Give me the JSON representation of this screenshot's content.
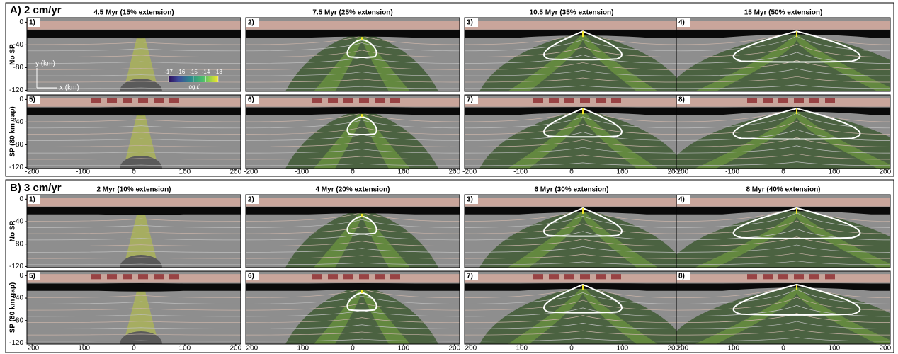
{
  "sections": [
    {
      "title": "A) 2 cm/yr",
      "columns": [
        "4.5 Myr (15% extension)",
        "7.5 Myr (25% extension)",
        "10.5 Myr (35% extension)",
        "15 Myr (50% extension)"
      ],
      "rows": [
        "No SP",
        "SP (80 km gap)"
      ],
      "panels": [
        "1)",
        "2)",
        "3)",
        "4)",
        "5)",
        "6)",
        "7)",
        "8)"
      ]
    },
    {
      "title": "B) 3 cm/yr",
      "columns": [
        "2 Myr (10% extension)",
        "4 Myr (20% extension)",
        "6 Myr (30% extension)",
        "8 Myr (40% extension)"
      ],
      "rows": [
        "No SP",
        "SP (80 km gap)"
      ],
      "panels": [
        "1)",
        "2)",
        "3)",
        "4)",
        "5)",
        "6)",
        "7)",
        "8)"
      ]
    }
  ],
  "xticks": [
    -200,
    -100,
    0,
    100,
    200
  ],
  "yticks": [
    0,
    -40,
    -80,
    -120
  ],
  "xlim": [
    -210,
    210
  ],
  "ylim": [
    -122,
    8
  ],
  "axes": {
    "y": "y (km)",
    "x": "x (km)"
  },
  "legend": {
    "ticks": [
      -17,
      -16,
      -15,
      -14,
      -13
    ],
    "label": "log ε̇"
  }
}
